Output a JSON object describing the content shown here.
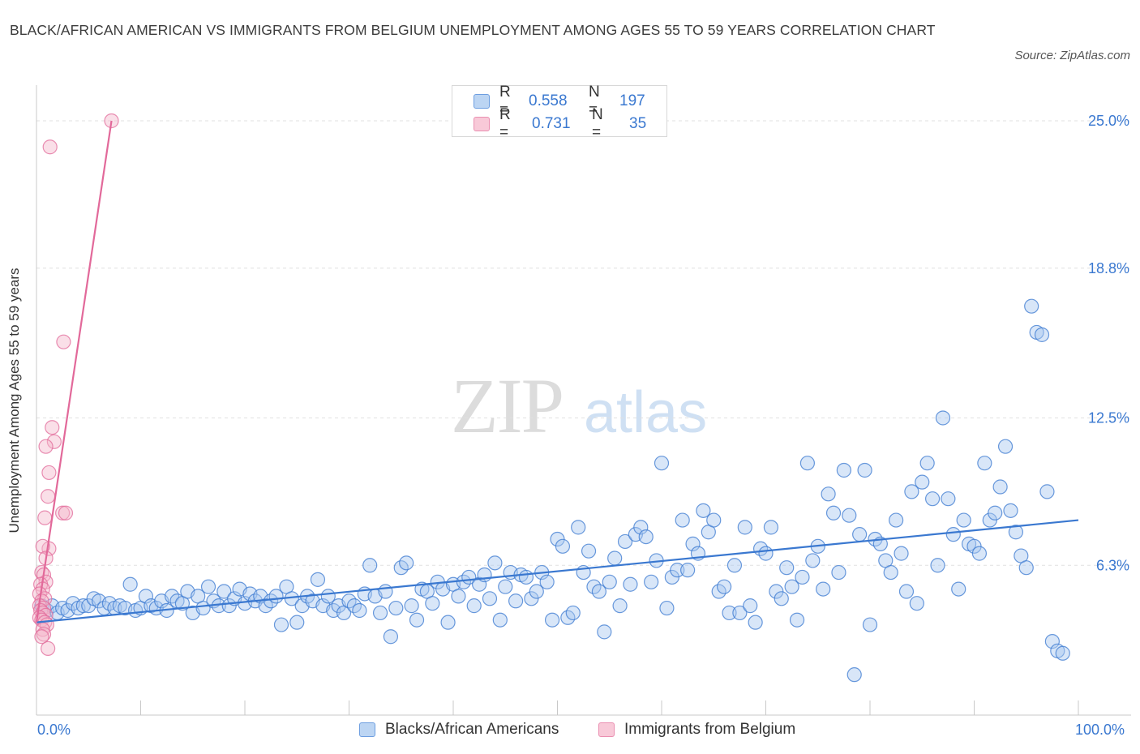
{
  "title": "BLACK/AFRICAN AMERICAN VS IMMIGRANTS FROM BELGIUM UNEMPLOYMENT AMONG AGES 55 TO 59 YEARS CORRELATION CHART",
  "source": "Source: ZipAtlas.com",
  "watermark": {
    "zip": "ZIP",
    "atlas": "atlas"
  },
  "legend": {
    "r_label": "R =",
    "n_label": "N =",
    "blue": {
      "r": "0.558",
      "n": "197"
    },
    "pink": {
      "r": "0.731",
      "n": "35"
    }
  },
  "colors": {
    "blue": "#3a78d0",
    "blue_fill": "#a9c8ef",
    "pink": "#e2699a",
    "pink_fill": "#f5b8cc"
  },
  "chart_data": {
    "type": "scatter",
    "ylabel": "Unemployment Among Ages 55 to 59 years",
    "xlabel": "",
    "xlim": [
      0,
      100
    ],
    "ylim": [
      0,
      26.5
    ],
    "x_tick_labels": [
      "0.0%",
      "100.0%"
    ],
    "y_ticks": [
      6.3,
      12.5,
      18.8,
      25.0
    ],
    "y_tick_labels": [
      "6.3%",
      "12.5%",
      "18.8%",
      "25.0%"
    ],
    "grid": true,
    "series": [
      {
        "name": "Blacks/African Americans",
        "color": "#3a78d0",
        "trendline": {
          "x": [
            0,
            100
          ],
          "y": [
            3.9,
            8.2
          ]
        },
        "points": [
          [
            0.5,
            4.6
          ],
          [
            1,
            4.4
          ],
          [
            1.5,
            4.6
          ],
          [
            2,
            4.3
          ],
          [
            2.5,
            4.5
          ],
          [
            3,
            4.4
          ],
          [
            3.5,
            4.7
          ],
          [
            4,
            4.5
          ],
          [
            4.5,
            4.6
          ],
          [
            5,
            4.6
          ],
          [
            5.5,
            4.9
          ],
          [
            6,
            4.8
          ],
          [
            6.5,
            4.5
          ],
          [
            7,
            4.7
          ],
          [
            7.5,
            4.5
          ],
          [
            8,
            4.6
          ],
          [
            8.5,
            4.5
          ],
          [
            9,
            5.5
          ],
          [
            9.5,
            4.4
          ],
          [
            10,
            4.5
          ],
          [
            10.5,
            5.0
          ],
          [
            11,
            4.6
          ],
          [
            11.5,
            4.5
          ],
          [
            12,
            4.8
          ],
          [
            12.5,
            4.4
          ],
          [
            13,
            5.0
          ],
          [
            13.5,
            4.8
          ],
          [
            14,
            4.7
          ],
          [
            14.5,
            5.2
          ],
          [
            15,
            4.3
          ],
          [
            15.5,
            5.0
          ],
          [
            16,
            4.5
          ],
          [
            16.5,
            5.4
          ],
          [
            17,
            4.8
          ],
          [
            17.5,
            4.6
          ],
          [
            18,
            5.2
          ],
          [
            18.5,
            4.6
          ],
          [
            19,
            4.9
          ],
          [
            19.5,
            5.3
          ],
          [
            20,
            4.7
          ],
          [
            20.5,
            5.1
          ],
          [
            21,
            4.8
          ],
          [
            21.5,
            5.0
          ],
          [
            22,
            4.6
          ],
          [
            22.5,
            4.8
          ],
          [
            23,
            5.0
          ],
          [
            23.5,
            3.8
          ],
          [
            24,
            5.4
          ],
          [
            24.5,
            4.9
          ],
          [
            25,
            3.9
          ],
          [
            25.5,
            4.6
          ],
          [
            26,
            5.0
          ],
          [
            26.5,
            4.8
          ],
          [
            27,
            5.7
          ],
          [
            27.5,
            4.6
          ],
          [
            28,
            5.0
          ],
          [
            28.5,
            4.4
          ],
          [
            29,
            4.6
          ],
          [
            29.5,
            4.3
          ],
          [
            30,
            4.8
          ],
          [
            30.5,
            4.6
          ],
          [
            31,
            4.4
          ],
          [
            31.5,
            5.1
          ],
          [
            32,
            6.3
          ],
          [
            32.5,
            5.0
          ],
          [
            33,
            4.3
          ],
          [
            33.5,
            5.2
          ],
          [
            34,
            3.3
          ],
          [
            34.5,
            4.5
          ],
          [
            35,
            6.2
          ],
          [
            35.5,
            6.4
          ],
          [
            36,
            4.6
          ],
          [
            36.5,
            4.0
          ],
          [
            37,
            5.3
          ],
          [
            37.5,
            5.2
          ],
          [
            38,
            4.7
          ],
          [
            38.5,
            5.6
          ],
          [
            39,
            5.3
          ],
          [
            39.5,
            3.9
          ],
          [
            40,
            5.5
          ],
          [
            40.5,
            5.0
          ],
          [
            41,
            5.6
          ],
          [
            41.5,
            5.8
          ],
          [
            42,
            4.6
          ],
          [
            42.5,
            5.5
          ],
          [
            43,
            5.9
          ],
          [
            43.5,
            4.9
          ],
          [
            44,
            6.4
          ],
          [
            44.5,
            4.0
          ],
          [
            45,
            5.4
          ],
          [
            45.5,
            6.0
          ],
          [
            46,
            4.8
          ],
          [
            46.5,
            5.9
          ],
          [
            47,
            5.8
          ],
          [
            47.5,
            4.9
          ],
          [
            48,
            5.2
          ],
          [
            48.5,
            6.0
          ],
          [
            49,
            5.6
          ],
          [
            49.5,
            4.0
          ],
          [
            50,
            7.4
          ],
          [
            50.5,
            7.1
          ],
          [
            51,
            4.1
          ],
          [
            51.5,
            4.3
          ],
          [
            52,
            7.9
          ],
          [
            52.5,
            6.0
          ],
          [
            53,
            6.9
          ],
          [
            53.5,
            5.4
          ],
          [
            54,
            5.2
          ],
          [
            54.5,
            3.5
          ],
          [
            55,
            5.6
          ],
          [
            55.5,
            6.6
          ],
          [
            56,
            4.6
          ],
          [
            56.5,
            7.3
          ],
          [
            57,
            5.5
          ],
          [
            57.5,
            7.6
          ],
          [
            58,
            7.9
          ],
          [
            58.5,
            7.5
          ],
          [
            59,
            5.6
          ],
          [
            59.5,
            6.5
          ],
          [
            60,
            10.6
          ],
          [
            60.5,
            4.5
          ],
          [
            61,
            5.8
          ],
          [
            61.5,
            6.1
          ],
          [
            62,
            8.2
          ],
          [
            62.5,
            6.1
          ],
          [
            63,
            7.2
          ],
          [
            63.5,
            6.8
          ],
          [
            64,
            8.6
          ],
          [
            64.5,
            7.7
          ],
          [
            65,
            8.2
          ],
          [
            65.5,
            5.2
          ],
          [
            66,
            5.4
          ],
          [
            66.5,
            4.3
          ],
          [
            67,
            6.3
          ],
          [
            67.5,
            4.3
          ],
          [
            68,
            7.9
          ],
          [
            68.5,
            4.6
          ],
          [
            69,
            3.9
          ],
          [
            69.5,
            7.0
          ],
          [
            70,
            6.8
          ],
          [
            70.5,
            7.9
          ],
          [
            71,
            5.2
          ],
          [
            71.5,
            4.9
          ],
          [
            72,
            6.2
          ],
          [
            72.5,
            5.4
          ],
          [
            73,
            4.0
          ],
          [
            73.5,
            5.8
          ],
          [
            74,
            10.6
          ],
          [
            74.5,
            6.5
          ],
          [
            75,
            7.1
          ],
          [
            75.5,
            5.3
          ],
          [
            76,
            9.3
          ],
          [
            76.5,
            8.5
          ],
          [
            77,
            6.0
          ],
          [
            77.5,
            10.3
          ],
          [
            78,
            8.4
          ],
          [
            78.5,
            1.7
          ],
          [
            79,
            7.6
          ],
          [
            79.5,
            10.3
          ],
          [
            80,
            3.8
          ],
          [
            80.5,
            7.4
          ],
          [
            81,
            7.2
          ],
          [
            81.5,
            6.5
          ],
          [
            82,
            6.0
          ],
          [
            82.5,
            8.2
          ],
          [
            83,
            6.8
          ],
          [
            83.5,
            5.2
          ],
          [
            84,
            9.4
          ],
          [
            84.5,
            4.7
          ],
          [
            85,
            9.8
          ],
          [
            85.5,
            10.6
          ],
          [
            86,
            9.1
          ],
          [
            86.5,
            6.3
          ],
          [
            87,
            12.5
          ],
          [
            87.5,
            9.1
          ],
          [
            88,
            7.6
          ],
          [
            88.5,
            5.3
          ],
          [
            89,
            8.2
          ],
          [
            89.5,
            7.2
          ],
          [
            90,
            7.1
          ],
          [
            90.5,
            6.8
          ],
          [
            91,
            10.6
          ],
          [
            91.5,
            8.2
          ],
          [
            92,
            8.5
          ],
          [
            92.5,
            9.6
          ],
          [
            93,
            11.3
          ],
          [
            93.5,
            8.6
          ],
          [
            94,
            7.7
          ],
          [
            94.5,
            6.7
          ],
          [
            95,
            6.2
          ],
          [
            95.5,
            17.2
          ],
          [
            96,
            16.1
          ],
          [
            96.5,
            16.0
          ],
          [
            97,
            9.4
          ],
          [
            97.5,
            3.1
          ],
          [
            98,
            2.7
          ],
          [
            98.5,
            2.6
          ]
        ]
      },
      {
        "name": "Immigrants from Belgium",
        "color": "#e2699a",
        "trendline": {
          "x": [
            0,
            7.2
          ],
          "y": [
            3.9,
            25.0
          ]
        },
        "points": [
          [
            7.2,
            25.0
          ],
          [
            1.3,
            23.9
          ],
          [
            2.6,
            15.7
          ],
          [
            1.5,
            12.1
          ],
          [
            1.7,
            11.5
          ],
          [
            0.9,
            11.3
          ],
          [
            1.2,
            10.2
          ],
          [
            1.1,
            9.2
          ],
          [
            2.5,
            8.5
          ],
          [
            2.8,
            8.5
          ],
          [
            0.8,
            8.3
          ],
          [
            1.2,
            7.0
          ],
          [
            0.6,
            7.1
          ],
          [
            0.9,
            6.6
          ],
          [
            0.5,
            6.0
          ],
          [
            0.7,
            5.9
          ],
          [
            0.9,
            5.6
          ],
          [
            0.4,
            5.5
          ],
          [
            0.6,
            5.3
          ],
          [
            0.3,
            5.1
          ],
          [
            0.8,
            4.9
          ],
          [
            0.5,
            4.8
          ],
          [
            0.3,
            4.6
          ],
          [
            0.7,
            4.5
          ],
          [
            0.4,
            4.4
          ],
          [
            0.6,
            4.3
          ],
          [
            0.9,
            4.2
          ],
          [
            0.3,
            4.1
          ],
          [
            0.5,
            4.0
          ],
          [
            0.8,
            3.9
          ],
          [
            1.0,
            3.8
          ],
          [
            0.6,
            3.6
          ],
          [
            0.7,
            3.4
          ],
          [
            0.5,
            3.3
          ],
          [
            1.1,
            2.8
          ]
        ]
      }
    ]
  }
}
